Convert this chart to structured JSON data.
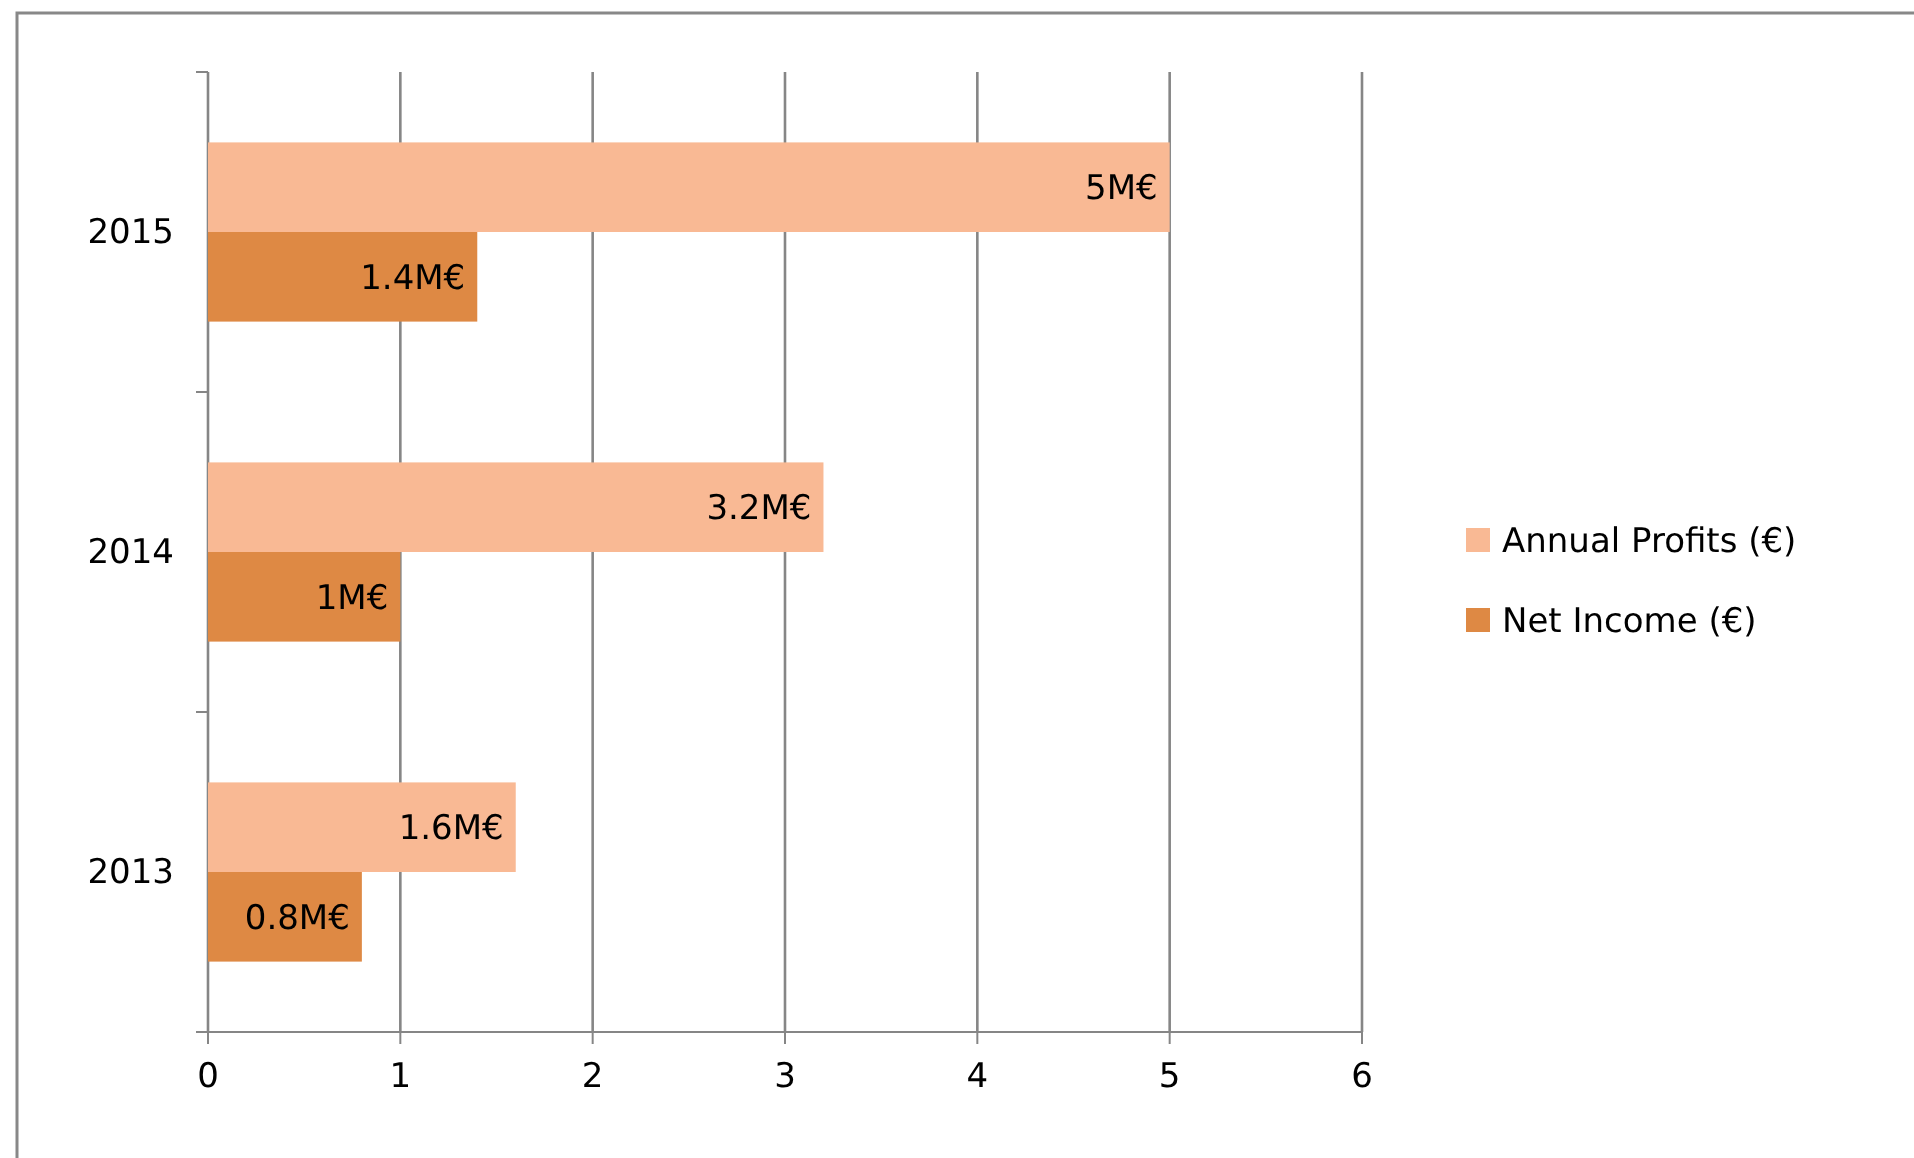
{
  "chart_data": {
    "type": "bar",
    "orientation": "horizontal",
    "categories": [
      "2015",
      "2014",
      "2013"
    ],
    "series": [
      {
        "name": "Annual Profits (€)",
        "color": "#f9b994",
        "values": [
          5,
          3.2,
          1.6
        ],
        "value_labels": [
          "5M€",
          "3.2M€",
          "1.6M€"
        ]
      },
      {
        "name": "Net Income (€)",
        "color": "#de8944",
        "values": [
          1.4,
          1,
          0.8
        ],
        "value_labels": [
          "1.4M€",
          "1M€",
          "0.8M€"
        ]
      }
    ],
    "xlim": [
      0,
      6
    ],
    "xticks": [
      0,
      1,
      2,
      3,
      4,
      5,
      6
    ],
    "grid": "x",
    "legend": "right"
  }
}
